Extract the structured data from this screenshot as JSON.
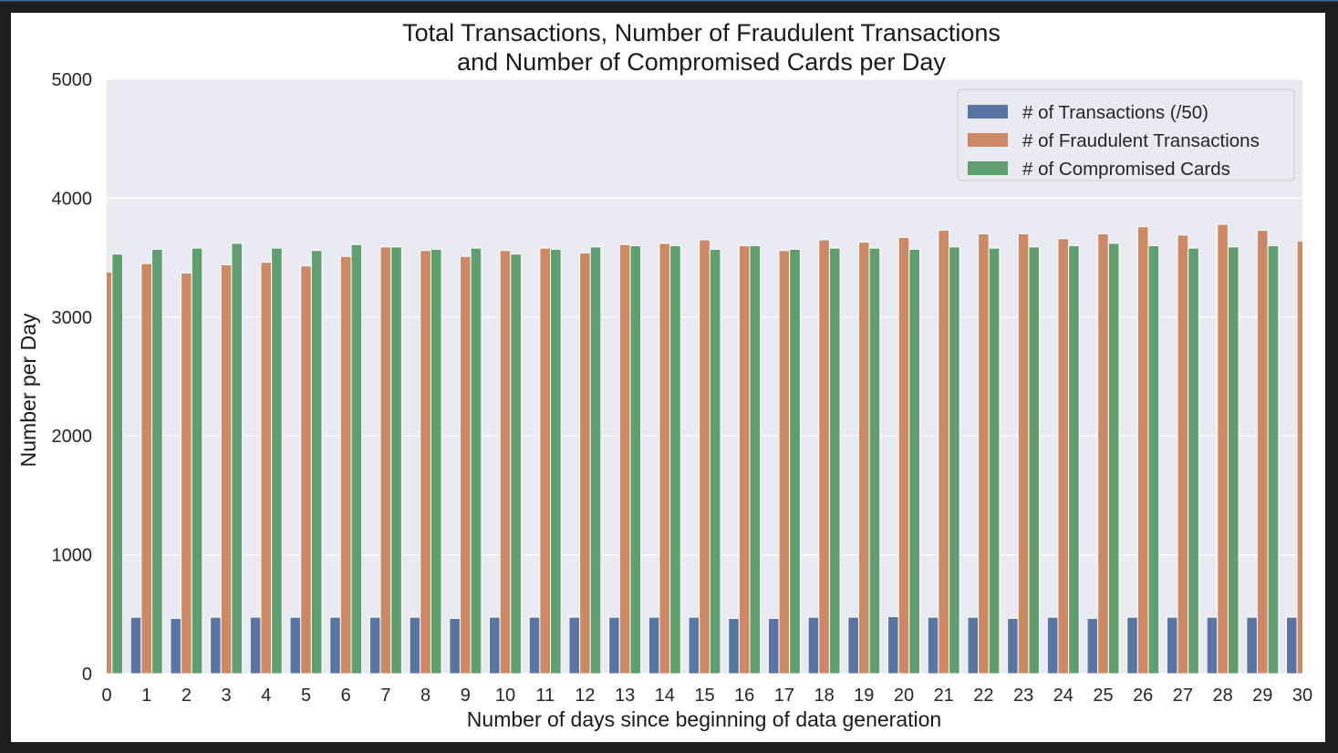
{
  "chart_data": {
    "type": "bar",
    "title": [
      "Total Transactions, Number of Fraudulent Transactions",
      "and Number of Compromised Cards per Day"
    ],
    "xlabel": "Number of days since beginning of data generation",
    "ylabel": "Number per Day",
    "ylim": [
      0,
      5000
    ],
    "yticks": [
      0,
      1000,
      2000,
      3000,
      4000,
      5000
    ],
    "grid": true,
    "legend_position": "top-right",
    "categories": [
      "0",
      "1",
      "2",
      "3",
      "4",
      "5",
      "6",
      "7",
      "8",
      "9",
      "10",
      "11",
      "12",
      "13",
      "14",
      "15",
      "16",
      "17",
      "18",
      "19",
      "20",
      "21",
      "22",
      "23",
      "24",
      "25",
      "26",
      "27",
      "28",
      "29",
      "30"
    ],
    "series": [
      {
        "name": "# of Transactions (/50)",
        "color": "#5875a4",
        "values": [
          0,
          475,
          465,
          475,
          475,
          475,
          475,
          475,
          475,
          465,
          475,
          475,
          475,
          475,
          475,
          475,
          465,
          465,
          475,
          475,
          480,
          475,
          475,
          465,
          475,
          465,
          475,
          475,
          475,
          475,
          475
        ]
      },
      {
        "name": "# of Fraudulent Transactions",
        "color": "#cc8963",
        "values": [
          3380,
          3450,
          3370,
          3440,
          3460,
          3430,
          3510,
          3590,
          3560,
          3510,
          3560,
          3580,
          3540,
          3610,
          3620,
          3650,
          3600,
          3560,
          3650,
          3630,
          3670,
          3730,
          3700,
          3700,
          3660,
          3700,
          3760,
          3690,
          3780,
          3730,
          3640
        ]
      },
      {
        "name": "# of Compromised Cards",
        "color": "#5f9e6e",
        "values": [
          3530,
          3570,
          3580,
          3620,
          3580,
          3560,
          3610,
          3590,
          3570,
          3580,
          3530,
          3570,
          3590,
          3600,
          3600,
          3570,
          3600,
          3570,
          3580,
          3580,
          3570,
          3590,
          3580,
          3590,
          3600,
          3620,
          3600,
          3580,
          3590,
          3600,
          0
        ]
      }
    ]
  }
}
